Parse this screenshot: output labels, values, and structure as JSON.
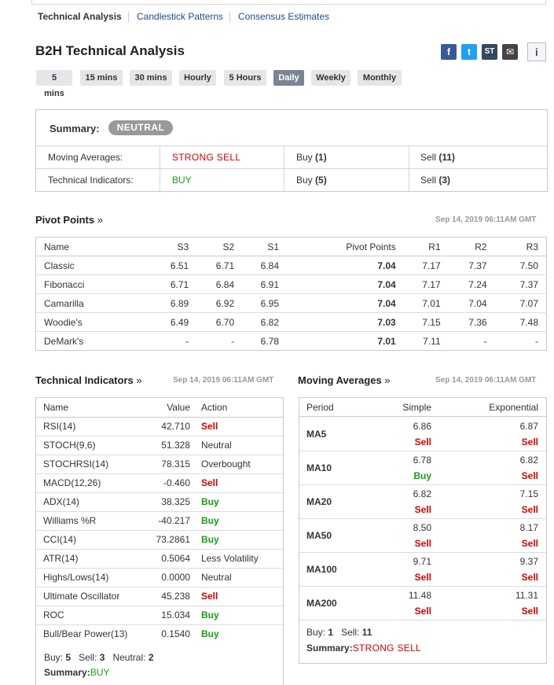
{
  "nav": {
    "tabs": [
      "Technical Analysis",
      "Candlestick Patterns",
      "Consensus Estimates"
    ]
  },
  "page_title": "B2H Technical Analysis",
  "social": {
    "facebook": "f",
    "twitter": "t",
    "stocktwits": "ST",
    "email": "✉",
    "info": "i"
  },
  "timeframes": [
    "5 mins",
    "15 mins",
    "30 mins",
    "Hourly",
    "5 Hours",
    "Daily",
    "Weekly",
    "Monthly"
  ],
  "active_timeframe": "Daily",
  "summary": {
    "label": "Summary:",
    "badge": "NEUTRAL",
    "rows": [
      {
        "label": "Moving Averages:",
        "signal": "STRONG SELL",
        "buy_label": "Buy",
        "buy_count": "(1)",
        "sell_label": "Sell",
        "sell_count": "(11)"
      },
      {
        "label": "Technical Indicators:",
        "signal": "BUY",
        "buy_label": "Buy",
        "buy_count": "(5)",
        "sell_label": "Sell",
        "sell_count": "(3)"
      }
    ]
  },
  "pivot": {
    "title": "Pivot Points",
    "arrow": "»",
    "timestamp": "Sep 14, 2019 06:11AM GMT",
    "headers": [
      "Name",
      "S3",
      "S2",
      "S1",
      "Pivot Points",
      "R1",
      "R2",
      "R3"
    ],
    "rows": [
      [
        "Classic",
        "6.51",
        "6.71",
        "6.84",
        "7.04",
        "7.17",
        "7.37",
        "7.50"
      ],
      [
        "Fibonacci",
        "6.71",
        "6.84",
        "6.91",
        "7.04",
        "7.17",
        "7.24",
        "7.37"
      ],
      [
        "Camarilla",
        "6.89",
        "6.92",
        "6.95",
        "7.04",
        "7.01",
        "7.04",
        "7.07"
      ],
      [
        "Woodie's",
        "6.49",
        "6.70",
        "6.82",
        "7.03",
        "7.15",
        "7.36",
        "7.48"
      ],
      [
        "DeMark's",
        "-",
        "-",
        "6.78",
        "7.01",
        "7.11",
        "-",
        "-"
      ]
    ]
  },
  "indicators": {
    "title": "Technical Indicators",
    "arrow": "»",
    "timestamp": "Sep 14, 2019 06:11AM GMT",
    "headers": [
      "Name",
      "Value",
      "Action"
    ],
    "rows": [
      [
        "RSI(14)",
        "42.710",
        "Sell"
      ],
      [
        "STOCH(9,6)",
        "51.328",
        "Neutral"
      ],
      [
        "STOCHRSI(14)",
        "78.315",
        "Overbought"
      ],
      [
        "MACD(12,26)",
        "-0.460",
        "Sell"
      ],
      [
        "ADX(14)",
        "38.325",
        "Buy"
      ],
      [
        "Williams %R",
        "-40.217",
        "Buy"
      ],
      [
        "CCI(14)",
        "73.2861",
        "Buy"
      ],
      [
        "ATR(14)",
        "0.5064",
        "Less Volatility"
      ],
      [
        "Highs/Lows(14)",
        "0.0000",
        "Neutral"
      ],
      [
        "Ultimate Oscillator",
        "45.238",
        "Sell"
      ],
      [
        "ROC",
        "15.034",
        "Buy"
      ],
      [
        "Bull/Bear Power(13)",
        "0.1540",
        "Buy"
      ]
    ],
    "footer": {
      "buy_label": "Buy:",
      "buy": "5",
      "sell_label": "Sell:",
      "sell": "3",
      "neutral_label": "Neutral:",
      "neutral": "2",
      "summary_label": "Summary:",
      "summary": "BUY"
    }
  },
  "moving_averages": {
    "title": "Moving Averages",
    "arrow": "»",
    "timestamp": "Sep 14, 2019 06:11AM GMT",
    "headers": [
      "Period",
      "Simple",
      "Exponential"
    ],
    "rows": [
      {
        "period": "MA5",
        "simple": "6.86",
        "simple_action": "Sell",
        "exp": "6.87",
        "exp_action": "Sell"
      },
      {
        "period": "MA10",
        "simple": "6.78",
        "simple_action": "Buy",
        "exp": "6.82",
        "exp_action": "Sell"
      },
      {
        "period": "MA20",
        "simple": "6.82",
        "simple_action": "Sell",
        "exp": "7.15",
        "exp_action": "Sell"
      },
      {
        "period": "MA50",
        "simple": "8.50",
        "simple_action": "Sell",
        "exp": "8.17",
        "exp_action": "Sell"
      },
      {
        "period": "MA100",
        "simple": "9.71",
        "simple_action": "Sell",
        "exp": "9.37",
        "exp_action": "Sell"
      },
      {
        "period": "MA200",
        "simple": "11.48",
        "simple_action": "Sell",
        "exp": "11.31",
        "exp_action": "Sell"
      }
    ],
    "footer": {
      "buy_label": "Buy:",
      "buy": "1",
      "sell_label": "Sell:",
      "sell": "11",
      "summary_label": "Summary:",
      "summary": "STRONG SELL"
    }
  },
  "colors": {
    "sell": "#d40000",
    "buy": "#14a014",
    "link": "#1a4d8c",
    "badge": "#999999"
  }
}
